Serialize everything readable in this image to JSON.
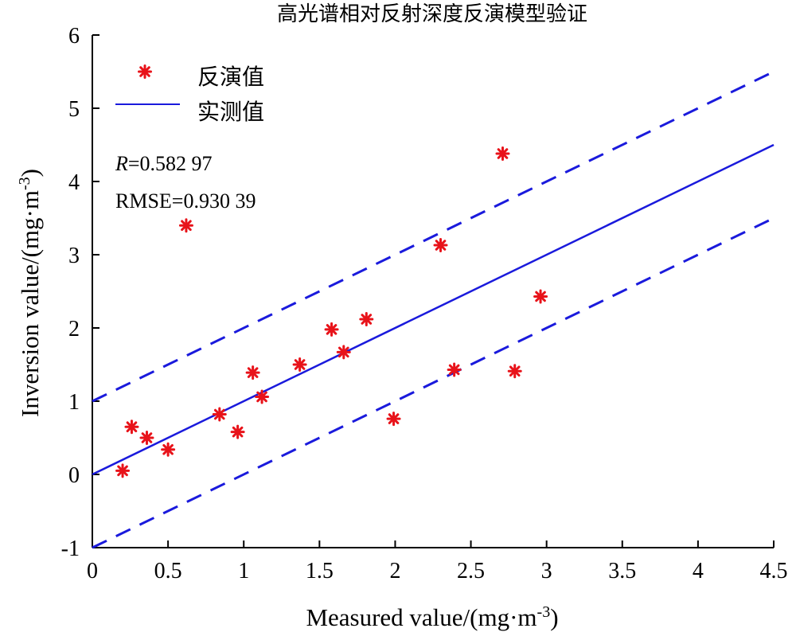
{
  "chart_data": {
    "type": "scatter",
    "title": "高光谱相对反射深度反演模型验证",
    "xlabel": "Measured value/(mg·m",
    "xlabel_sup": "-3",
    "xlabel_close": ")",
    "ylabel": "Inversion value/(mg·m",
    "ylabel_sup": "-3",
    "ylabel_close": ")",
    "xlim": [
      0,
      4.5
    ],
    "ylim": [
      -1,
      6
    ],
    "x_ticks": [
      0,
      0.5,
      1,
      1.5,
      2,
      2.5,
      3,
      3.5,
      4,
      4.5
    ],
    "x_tick_labels": [
      "0",
      "0.5",
      "1",
      "1.5",
      "2",
      "2.5",
      "3",
      "3.5",
      "4",
      "4.5"
    ],
    "y_ticks": [
      -1,
      0,
      1,
      2,
      3,
      4,
      5,
      6
    ],
    "y_tick_labels": [
      "-1",
      "0",
      "1",
      "2",
      "3",
      "4",
      "5",
      "6"
    ],
    "grid": false,
    "legend_position": "top-left",
    "series": [
      {
        "name": "反演值",
        "kind": "scatter",
        "marker": "asterisk",
        "color": "#e8131a",
        "points": [
          [
            0.2,
            0.05
          ],
          [
            0.26,
            0.65
          ],
          [
            0.36,
            0.5
          ],
          [
            0.5,
            0.34
          ],
          [
            0.62,
            3.4
          ],
          [
            0.84,
            0.82
          ],
          [
            0.96,
            0.58
          ],
          [
            1.06,
            1.39
          ],
          [
            1.12,
            1.06
          ],
          [
            1.37,
            1.5
          ],
          [
            1.58,
            1.98
          ],
          [
            1.66,
            1.67
          ],
          [
            1.81,
            2.12
          ],
          [
            1.99,
            0.76
          ],
          [
            2.3,
            3.13
          ],
          [
            2.39,
            1.43
          ],
          [
            2.71,
            4.38
          ],
          [
            2.79,
            1.41
          ],
          [
            2.96,
            2.43
          ]
        ]
      },
      {
        "name": "实测值",
        "kind": "line",
        "style": "solid",
        "color": "#1a1adc",
        "points": [
          [
            0,
            0
          ],
          [
            4.5,
            4.5
          ]
        ]
      },
      {
        "kind": "line",
        "style": "dashed",
        "color": "#1a1adc",
        "points": [
          [
            0,
            1
          ],
          [
            4.5,
            5.5
          ]
        ]
      },
      {
        "kind": "line",
        "style": "dashed",
        "color": "#1a1adc",
        "points": [
          [
            0,
            -1
          ],
          [
            4.5,
            3.5
          ]
        ]
      }
    ],
    "annotations": {
      "r_symbol": "R",
      "r_value": "=0.582 97",
      "rmse": "RMSE=0.930 39"
    }
  }
}
